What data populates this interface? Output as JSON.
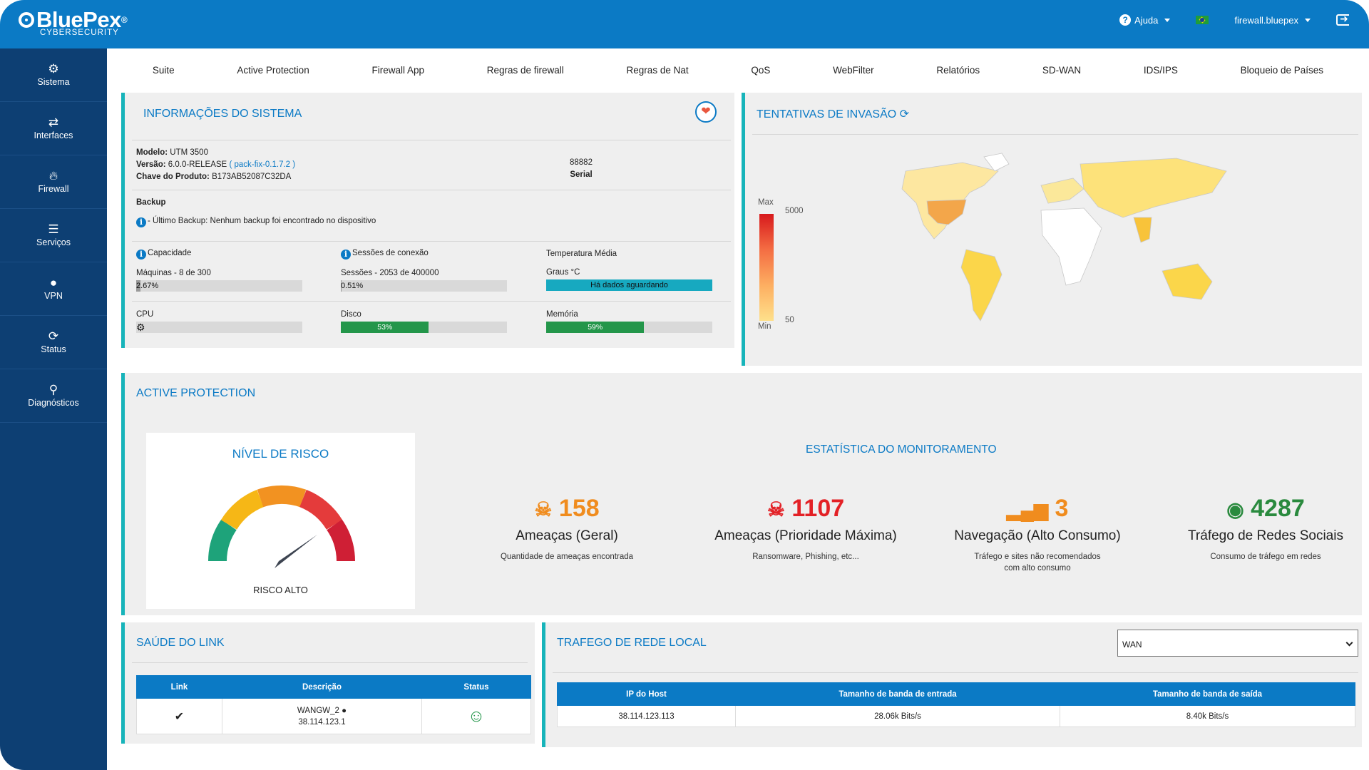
{
  "header": {
    "brand": "BluePex",
    "brand_mark": "®",
    "tagline": "CYBERSECURITY",
    "help": "Ajuda",
    "user": "firewall.bluepex"
  },
  "sidebar": {
    "items": [
      {
        "label": "Sistema",
        "icon": "gears-icon"
      },
      {
        "label": "Interfaces",
        "icon": "arrows-icon"
      },
      {
        "label": "Firewall",
        "icon": "fire-icon"
      },
      {
        "label": "Serviços",
        "icon": "list-icon"
      },
      {
        "label": "VPN",
        "icon": "globe-icon"
      },
      {
        "label": "Status",
        "icon": "refresh-icon"
      },
      {
        "label": "Diagnósticos",
        "icon": "search-icon"
      }
    ]
  },
  "nav": [
    "Suite",
    "Active Protection",
    "Firewall App",
    "Regras de firewall",
    "Regras de Nat",
    "QoS",
    "WebFilter",
    "Relatórios",
    "SD-WAN",
    "IDS/IPS",
    "Bloqueio de Países"
  ],
  "system": {
    "title": "INFORMAÇÕES DO SISTEMA",
    "model_label": "Modelo:",
    "model": "UTM 3500",
    "version_label": "Versão:",
    "version": "6.0.0-RELEASE",
    "pack": "( pack-fix-0.1.7.2 )",
    "key_label": "Chave do Produto:",
    "key": "B173AB52087C32DA",
    "serial_value": "88882",
    "serial_label": "Serial",
    "backup_title": "Backup",
    "backup_text": "- Último Backup: Nenhum backup foi encontrado no dispositivo",
    "capacity_label": "Capacidade",
    "capacity_sub": "Máquinas - 8 de 300",
    "capacity_pct": "2.67%",
    "capacity_value": 2.67,
    "sessions_label": "Sessões de conexão",
    "sessions_sub": "Sessões - 2053 de 400000",
    "sessions_pct": "0.51%",
    "sessions_value": 0.51,
    "temp_label": "Temperatura Média",
    "temp_sub": "Graus °C",
    "temp_status": "Há dados aguardando",
    "cpu_label": "CPU",
    "disk_label": "Disco",
    "disk_pct": "53%",
    "disk_value": 53,
    "mem_label": "Memória",
    "mem_pct": "59%",
    "mem_value": 59
  },
  "map": {
    "title": "TENTATIVAS DE INVASÃO",
    "legend_max": "Max",
    "legend_max_value": "5000",
    "legend_min": "Min",
    "legend_min_value": "50"
  },
  "active_protection": {
    "title": "ACTIVE PROTECTION",
    "risk_title": "NÍVEL DE RISCO",
    "risk_label": "RISCO ALTO",
    "stats_title": "ESTATÍSTICA DO MONITORAMENTO",
    "stats": [
      {
        "value": "158",
        "name": "Ameaças (Geral)",
        "desc": "Quantidade de ameaças encontrada",
        "color": "#f08c1e",
        "icon": "skull-icon"
      },
      {
        "value": "1107",
        "name": "Ameaças (Prioridade Máxima)",
        "desc": "Ransomware, Phishing, etc...",
        "color": "#e32126",
        "icon": "skull-icon"
      },
      {
        "value": "3",
        "name": "Navegação (Alto Consumo)",
        "desc": "Tráfego e sites não recomendados com alto consumo",
        "color": "#f08c1e",
        "icon": "signal-icon"
      },
      {
        "value": "4287",
        "name": "Tráfego de Redes Sociais",
        "desc": "Consumo de tráfego em redes",
        "color": "#2a8a3e",
        "icon": "social-icon"
      }
    ]
  },
  "link_health": {
    "title": "SAÚDE DO LINK",
    "headers": [
      "Link",
      "Descrição",
      "Status"
    ],
    "row": {
      "name": "WANGW_2",
      "ip": "38.114.123.1"
    }
  },
  "local_traffic": {
    "title": "TRAFEGO DE REDE LOCAL",
    "select_value": "WAN",
    "headers": [
      "IP do Host",
      "Tamanho de banda de entrada",
      "Tamanho de banda de saída"
    ],
    "rows": [
      [
        "38.114.123.113",
        "28.06k Bits/s",
        "8.40k Bits/s"
      ]
    ]
  }
}
